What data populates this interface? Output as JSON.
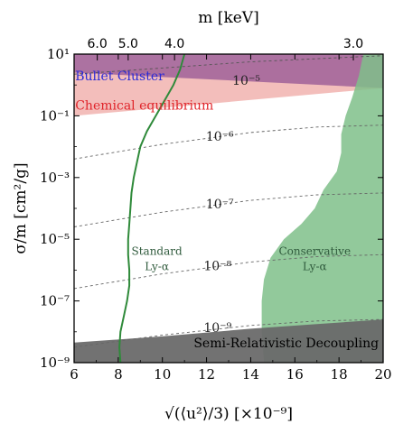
{
  "chart_data": {
    "type": "area",
    "x_axis": {
      "label": "√(⟨u²⟩/3) [×10⁻⁹]",
      "range": [
        6,
        20
      ],
      "ticks": [
        6,
        8,
        10,
        12,
        14,
        16,
        18,
        20
      ]
    },
    "y_axis": {
      "label": "σ/m [cm²/g]",
      "scale": "log",
      "range_exponent": [
        -9,
        1
      ],
      "ticks_exponent": [
        -9,
        -7,
        -5,
        -3,
        -1,
        1
      ],
      "tick_labels": [
        "10⁻⁹",
        "10⁻⁷",
        "10⁻⁵",
        "10⁻³",
        "10⁻¹",
        "10¹"
      ]
    },
    "top_axis": {
      "label": "m [keV]",
      "ticks": [
        {
          "label": "6.0",
          "x": 7.05
        },
        {
          "label": "5.0",
          "x": 8.45
        },
        {
          "label": "4.0",
          "x": 10.55
        },
        {
          "label": "3.0",
          "x": 18.65
        }
      ]
    },
    "regions": {
      "bullet_cluster": {
        "label": "Bullet Cluster",
        "color": "#a86a9c",
        "text_color": "#2b2bd6"
      },
      "chemical_equilibrium": {
        "label": "Chemical equilibrium",
        "color": "#f2b7b4",
        "text_color": "#e0242a"
      },
      "semi_relativistic": {
        "label": "Semi-Relativistic Decoupling",
        "color": "#6a6a6a",
        "text_color": "#000000"
      },
      "conservative_ly_alpha": {
        "label_line1": "Conservative",
        "label_line2": "Ly-α",
        "color": "#7fbf8a",
        "text_color": "#2f5a3c"
      },
      "standard_ly_alpha": {
        "label_line1": "Standard",
        "label_line2": "Ly-α",
        "color": "#2f8a3a",
        "text_color": "#2f5a3c"
      }
    },
    "contours": [
      {
        "label": "10⁻⁵",
        "label_x": 13.8,
        "label_y_exp": 0.0
      },
      {
        "label": "10⁻⁶",
        "label_x": 12.6,
        "label_y_exp": -1.8
      },
      {
        "label": "10⁻⁷",
        "label_x": 12.6,
        "label_y_exp": -4.0
      },
      {
        "label": "10⁻⁸",
        "label_x": 12.5,
        "label_y_exp": -6.0
      },
      {
        "label": "10⁻⁹",
        "label_x": 12.5,
        "label_y_exp": -8.0
      }
    ],
    "contour_lines": [
      {
        "y_left": -2.4,
        "y_right": -1.3
      },
      {
        "y_left": -4.6,
        "y_right": -3.5
      },
      {
        "y_left": -6.6,
        "y_right": -5.5
      },
      {
        "y_left": -8.5,
        "y_right": -7.6
      }
    ],
    "standard_ly_alpha_curve": [
      [
        8.1,
        -9.0
      ],
      [
        8.05,
        -8.5
      ],
      [
        8.1,
        -8.0
      ],
      [
        8.25,
        -7.5
      ],
      [
        8.4,
        -7.0
      ],
      [
        8.5,
        -6.5
      ],
      [
        8.5,
        -6.0
      ],
      [
        8.45,
        -5.5
      ],
      [
        8.45,
        -5.0
      ],
      [
        8.5,
        -4.5
      ],
      [
        8.55,
        -4.0
      ],
      [
        8.6,
        -3.5
      ],
      [
        8.7,
        -3.0
      ],
      [
        8.85,
        -2.5
      ],
      [
        9.0,
        -2.0
      ],
      [
        9.3,
        -1.5
      ],
      [
        9.7,
        -1.0
      ],
      [
        10.1,
        -0.5
      ],
      [
        10.5,
        0.0
      ],
      [
        10.8,
        0.5
      ],
      [
        11.0,
        1.0
      ]
    ],
    "conservative_ly_alpha_boundary": [
      [
        14.6,
        -9.0
      ],
      [
        14.5,
        -8.0
      ],
      [
        14.5,
        -7.0
      ],
      [
        14.6,
        -6.3
      ],
      [
        14.9,
        -5.6
      ],
      [
        15.5,
        -5.0
      ],
      [
        16.3,
        -4.5
      ],
      [
        16.9,
        -4.0
      ],
      [
        17.3,
        -3.4
      ],
      [
        17.9,
        -2.8
      ],
      [
        18.1,
        -2.2
      ],
      [
        18.1,
        -1.6
      ],
      [
        18.3,
        -1.0
      ],
      [
        18.6,
        -0.4
      ],
      [
        18.9,
        0.3
      ],
      [
        19.1,
        1.0
      ]
    ]
  }
}
